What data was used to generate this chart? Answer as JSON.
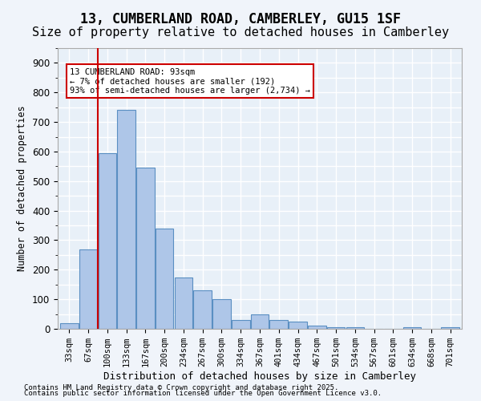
{
  "title1": "13, CUMBERLAND ROAD, CAMBERLEY, GU15 1SF",
  "title2": "Size of property relative to detached houses in Camberley",
  "xlabel": "Distribution of detached houses by size in Camberley",
  "ylabel": "Number of detached properties",
  "categories": [
    "33sqm",
    "67sqm",
    "100sqm",
    "133sqm",
    "167sqm",
    "200sqm",
    "234sqm",
    "267sqm",
    "300sqm",
    "334sqm",
    "367sqm",
    "401sqm",
    "434sqm",
    "467sqm",
    "501sqm",
    "534sqm",
    "567sqm",
    "601sqm",
    "634sqm",
    "668sqm",
    "701sqm"
  ],
  "values": [
    20,
    270,
    595,
    740,
    545,
    340,
    175,
    130,
    100,
    30,
    50,
    30,
    25,
    10,
    5,
    5,
    0,
    0,
    5,
    0,
    5
  ],
  "bar_color": "#aec6e8",
  "bar_edge_color": "#5a8fc2",
  "vline_x": 1.5,
  "vline_color": "#cc0000",
  "annotation_title": "13 CUMBERLAND ROAD: 93sqm",
  "annotation_line1": "← 7% of detached houses are smaller (192)",
  "annotation_line2": "93% of semi-detached houses are larger (2,734) →",
  "annotation_box_color": "#cc0000",
  "ylim": [
    0,
    950
  ],
  "yticks": [
    0,
    100,
    200,
    300,
    400,
    500,
    600,
    700,
    800,
    900
  ],
  "footer1": "Contains HM Land Registry data © Crown copyright and database right 2025.",
  "footer2": "Contains public sector information licensed under the Open Government Licence v3.0.",
  "bg_color": "#e8f0f8",
  "grid_color": "#ffffff",
  "title1_fontsize": 12,
  "title2_fontsize": 11
}
